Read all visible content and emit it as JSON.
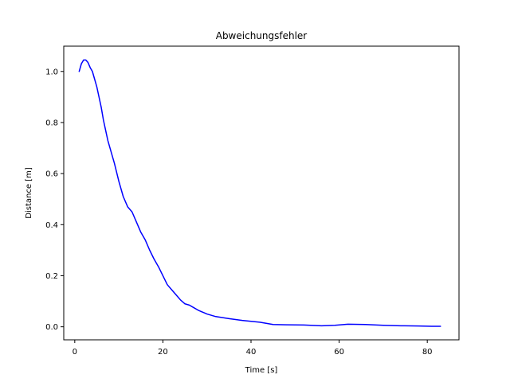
{
  "chart_data": {
    "type": "line",
    "title": "Abweichungsfehler",
    "xlabel": "Time [s]",
    "ylabel": "Distance [m]",
    "xlim": [
      -2.5,
      87.2
    ],
    "ylim": [
      -0.051,
      1.099
    ],
    "xticks": [
      0,
      20,
      40,
      60,
      80
    ],
    "xtick_labels": [
      "0",
      "20",
      "40",
      "60",
      "80"
    ],
    "yticks": [
      0.0,
      0.2,
      0.4,
      0.6,
      0.8,
      1.0
    ],
    "ytick_labels": [
      "0.0",
      "0.2",
      "0.4",
      "0.6",
      "0.8",
      "1.0"
    ],
    "grid": false,
    "legend": false,
    "series": [
      {
        "color": "#0000ff",
        "x": [
          1.0,
          1.5,
          2.0,
          2.5,
          3.0,
          3.5,
          4.0,
          4.5,
          5.0,
          5.5,
          6.0,
          6.5,
          7.0,
          7.5,
          8.0,
          9.0,
          10.0,
          11.0,
          12.0,
          13.0,
          14.0,
          15.0,
          16.0,
          17.0,
          18.0,
          19.0,
          20.0,
          21.0,
          22.0,
          23.0,
          24.0,
          25.0,
          26.0,
          27.0,
          28.0,
          30.0,
          32.0,
          35.0,
          38.0,
          42.0,
          45.0,
          48.0,
          52.0,
          56.0,
          59.0,
          62.0,
          66.0,
          70.0,
          74.0,
          78.0,
          81.0,
          83.0
        ],
        "y": [
          1.0,
          1.03,
          1.045,
          1.045,
          1.035,
          1.015,
          1.0,
          0.97,
          0.94,
          0.9,
          0.86,
          0.81,
          0.77,
          0.73,
          0.7,
          0.64,
          0.57,
          0.51,
          0.47,
          0.45,
          0.41,
          0.37,
          0.34,
          0.3,
          0.265,
          0.235,
          0.2,
          0.165,
          0.145,
          0.125,
          0.105,
          0.09,
          0.085,
          0.075,
          0.065,
          0.05,
          0.04,
          0.032,
          0.025,
          0.018,
          0.009,
          0.008,
          0.007,
          0.004,
          0.006,
          0.01,
          0.009,
          0.006,
          0.004,
          0.003,
          0.002,
          0.002
        ]
      }
    ]
  }
}
